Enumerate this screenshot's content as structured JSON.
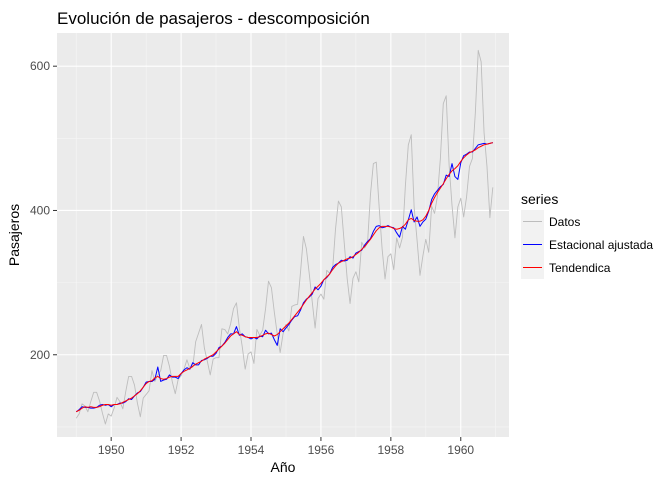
{
  "chart_data": {
    "type": "line",
    "title": "Evolución de pasajeros - descomposición",
    "xlabel": "Año",
    "ylabel": "Pasajeros",
    "xlim": [
      1948.45,
      1961.38
    ],
    "ylim": [
      86,
      646
    ],
    "x_ticks": [
      1950,
      1952,
      1954,
      1956,
      1958,
      1960
    ],
    "y_ticks": [
      200,
      400,
      600
    ],
    "grid": true,
    "legend": {
      "title": "series",
      "placement": "right",
      "entries": [
        "Datos",
        "Estacional ajustada",
        "Tendendica"
      ]
    },
    "x_start": 1949.0,
    "x_step": 0.0833333,
    "series": [
      {
        "name": "Datos",
        "color": "#bdbdbd",
        "values": [
          112,
          118,
          132,
          129,
          121,
          135,
          148,
          148,
          136,
          119,
          104,
          118,
          115,
          126,
          141,
          135,
          125,
          149,
          170,
          170,
          158,
          133,
          114,
          140,
          145,
          150,
          178,
          163,
          172,
          178,
          199,
          199,
          184,
          162,
          146,
          166,
          171,
          180,
          193,
          181,
          183,
          218,
          230,
          242,
          209,
          191,
          172,
          194,
          196,
          196,
          236,
          235,
          229,
          243,
          264,
          272,
          237,
          211,
          180,
          201,
          204,
          188,
          235,
          227,
          234,
          264,
          302,
          293,
          259,
          229,
          203,
          229,
          242,
          233,
          267,
          269,
          270,
          315,
          364,
          347,
          312,
          274,
          237,
          278,
          284,
          277,
          317,
          313,
          318,
          374,
          413,
          405,
          355,
          306,
          271,
          306,
          315,
          301,
          356,
          348,
          355,
          422,
          465,
          467,
          404,
          347,
          305,
          336,
          340,
          318,
          362,
          348,
          363,
          435,
          491,
          505,
          404,
          359,
          310,
          337,
          360,
          342,
          406,
          396,
          420,
          472,
          548,
          559,
          463,
          407,
          362,
          405,
          417,
          391,
          419,
          461,
          472,
          535,
          622,
          606,
          508,
          461,
          390,
          432
        ]
      },
      {
        "name": "Estacional ajustada",
        "color": "#0000ff",
        "values": [
          121,
          124,
          128,
          127,
          127,
          126,
          126,
          127,
          130,
          131,
          130,
          131,
          128,
          131,
          131,
          133,
          133,
          135,
          139,
          138,
          143,
          147,
          149,
          155,
          162,
          163,
          163,
          166,
          183,
          163,
          165,
          166,
          172,
          169,
          169,
          167,
          174,
          179,
          182,
          180,
          189,
          186,
          186,
          192,
          193,
          195,
          198,
          198,
          202,
          210,
          212,
          217,
          224,
          229,
          229,
          239,
          227,
          229,
          225,
          224,
          222,
          224,
          222,
          226,
          225,
          234,
          229,
          230,
          221,
          213,
          236,
          232,
          237,
          242,
          248,
          253,
          254,
          262,
          272,
          277,
          280,
          284,
          294,
          290,
          295,
          304,
          307,
          312,
          321,
          325,
          327,
          331,
          330,
          331,
          336,
          334,
          341,
          343,
          345,
          352,
          357,
          361,
          371,
          378,
          379,
          376,
          377,
          379,
          377,
          376,
          369,
          363,
          378,
          374,
          387,
          401,
          384,
          391,
          378,
          384,
          388,
          399,
          415,
          423,
          428,
          433,
          436,
          449,
          447,
          465,
          447,
          443,
          466,
          476,
          478,
          481,
          481,
          486,
          491,
          492,
          493,
          492,
          493,
          494
        ]
      },
      {
        "name": "Tendendica",
        "color": "#ff0000",
        "values": [
          121,
          123,
          126,
          128,
          127,
          128,
          127,
          127,
          128,
          130,
          131,
          131,
          130,
          131,
          131,
          132,
          134,
          136,
          138,
          140,
          143,
          146,
          150,
          155,
          160,
          163,
          164,
          168,
          170,
          167,
          166,
          167,
          169,
          170,
          170,
          170,
          174,
          177,
          179,
          181,
          184,
          187,
          189,
          191,
          194,
          196,
          198,
          200,
          204,
          208,
          212,
          216,
          221,
          226,
          229,
          232,
          228,
          227,
          225,
          224,
          224,
          224,
          224,
          225,
          227,
          229,
          230,
          228,
          226,
          228,
          232,
          236,
          240,
          244,
          249,
          254,
          259,
          264,
          270,
          276,
          281,
          286,
          291,
          295,
          299,
          304,
          308,
          312,
          318,
          323,
          327,
          329,
          331,
          333,
          334,
          336,
          339,
          342,
          346,
          350,
          355,
          360,
          366,
          372,
          376,
          378,
          378,
          378,
          377,
          375,
          374,
          375,
          377,
          381,
          387,
          389,
          386,
          385,
          385,
          387,
          392,
          400,
          410,
          418,
          425,
          431,
          437,
          444,
          450,
          455,
          458,
          462,
          468,
          473,
          477,
          480,
          482,
          484,
          487,
          489,
          491,
          492,
          493,
          494
        ]
      }
    ]
  }
}
